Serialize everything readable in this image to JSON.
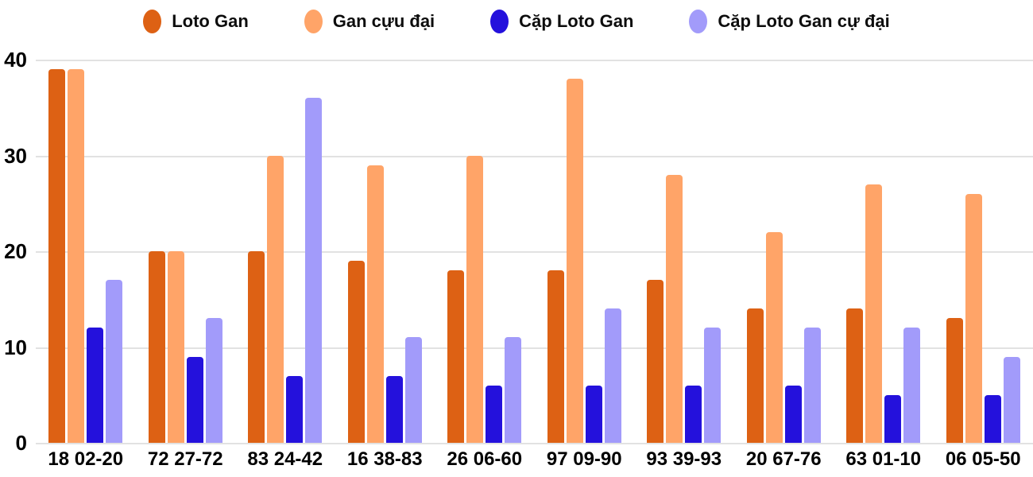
{
  "chart_data": {
    "type": "bar",
    "title": "",
    "xlabel": "",
    "ylabel": "",
    "categories": [
      "18 02-20",
      "72 27-72",
      "83 24-42",
      "16 38-83",
      "26 06-60",
      "97 09-90",
      "93 39-93",
      "20 67-76",
      "63 01-10",
      "06 05-50"
    ],
    "series": [
      {
        "key": "loto-gan",
        "name": "Loto Gan",
        "color": "#dd6114",
        "values": [
          39,
          20,
          20,
          19,
          18,
          18,
          17,
          14,
          14,
          13
        ]
      },
      {
        "key": "gan-cuu-dai",
        "name": "Gan cựu đại",
        "color": "#ffa468",
        "values": [
          39,
          20,
          30,
          29,
          30,
          38,
          28,
          22,
          27,
          26
        ]
      },
      {
        "key": "cap-loto-gan",
        "name": "Cặp Loto Gan",
        "color": "#2411dc",
        "values": [
          12,
          9,
          7,
          7,
          6,
          6,
          6,
          6,
          5,
          5
        ]
      },
      {
        "key": "cap-loto-gan-cu-dai",
        "name": "Cặp Loto Gan cự đại",
        "color": "#a29bfa",
        "values": [
          17,
          13,
          36,
          11,
          11,
          14,
          12,
          12,
          12,
          9
        ]
      }
    ],
    "ylim": [
      0,
      40
    ],
    "yticks": [
      0,
      10,
      20,
      30,
      40
    ],
    "grid": true,
    "legend_position": "top",
    "colors": {
      "gridline": "#e2e2e2",
      "text": "#000000"
    }
  }
}
